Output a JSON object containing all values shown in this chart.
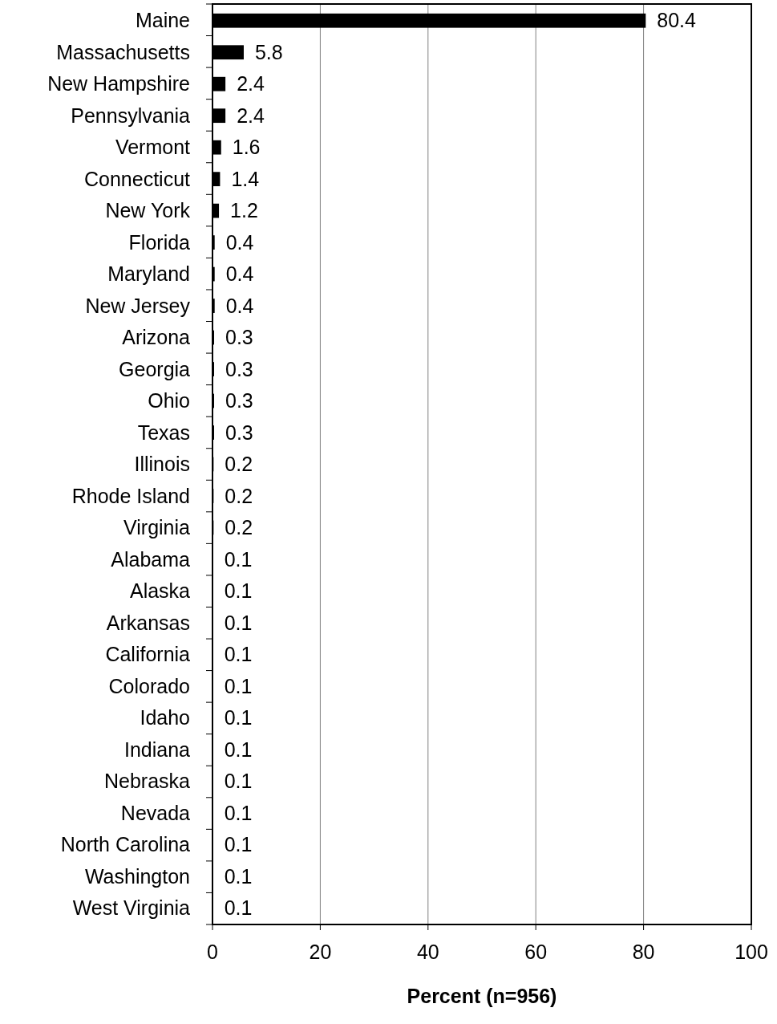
{
  "chart_data": {
    "type": "bar",
    "orientation": "horizontal",
    "xlabel": "Percent (n=956)",
    "categories": [
      "Maine",
      "Massachusetts",
      "New Hampshire",
      "Pennsylvania",
      "Vermont",
      "Connecticut",
      "New York",
      "Florida",
      "Maryland",
      "New Jersey",
      "Arizona",
      "Georgia",
      "Ohio",
      "Texas",
      "Illinois",
      "Rhode Island",
      "Virginia",
      "Alabama",
      "Alaska",
      "Arkansas",
      "California",
      "Colorado",
      "Idaho",
      "Indiana",
      "Nebraska",
      "Nevada",
      "North Carolina",
      "Washington",
      "West Virginia"
    ],
    "values": [
      80.4,
      5.8,
      2.4,
      2.4,
      1.6,
      1.4,
      1.2,
      0.4,
      0.4,
      0.4,
      0.3,
      0.3,
      0.3,
      0.3,
      0.2,
      0.2,
      0.2,
      0.1,
      0.1,
      0.1,
      0.1,
      0.1,
      0.1,
      0.1,
      0.1,
      0.1,
      0.1,
      0.1,
      0.1
    ],
    "color": "#000000",
    "xlim": [
      0,
      100
    ],
    "xticks": [
      0,
      20,
      40,
      60,
      80,
      100
    ],
    "grid": "x",
    "data_labels": true
  }
}
